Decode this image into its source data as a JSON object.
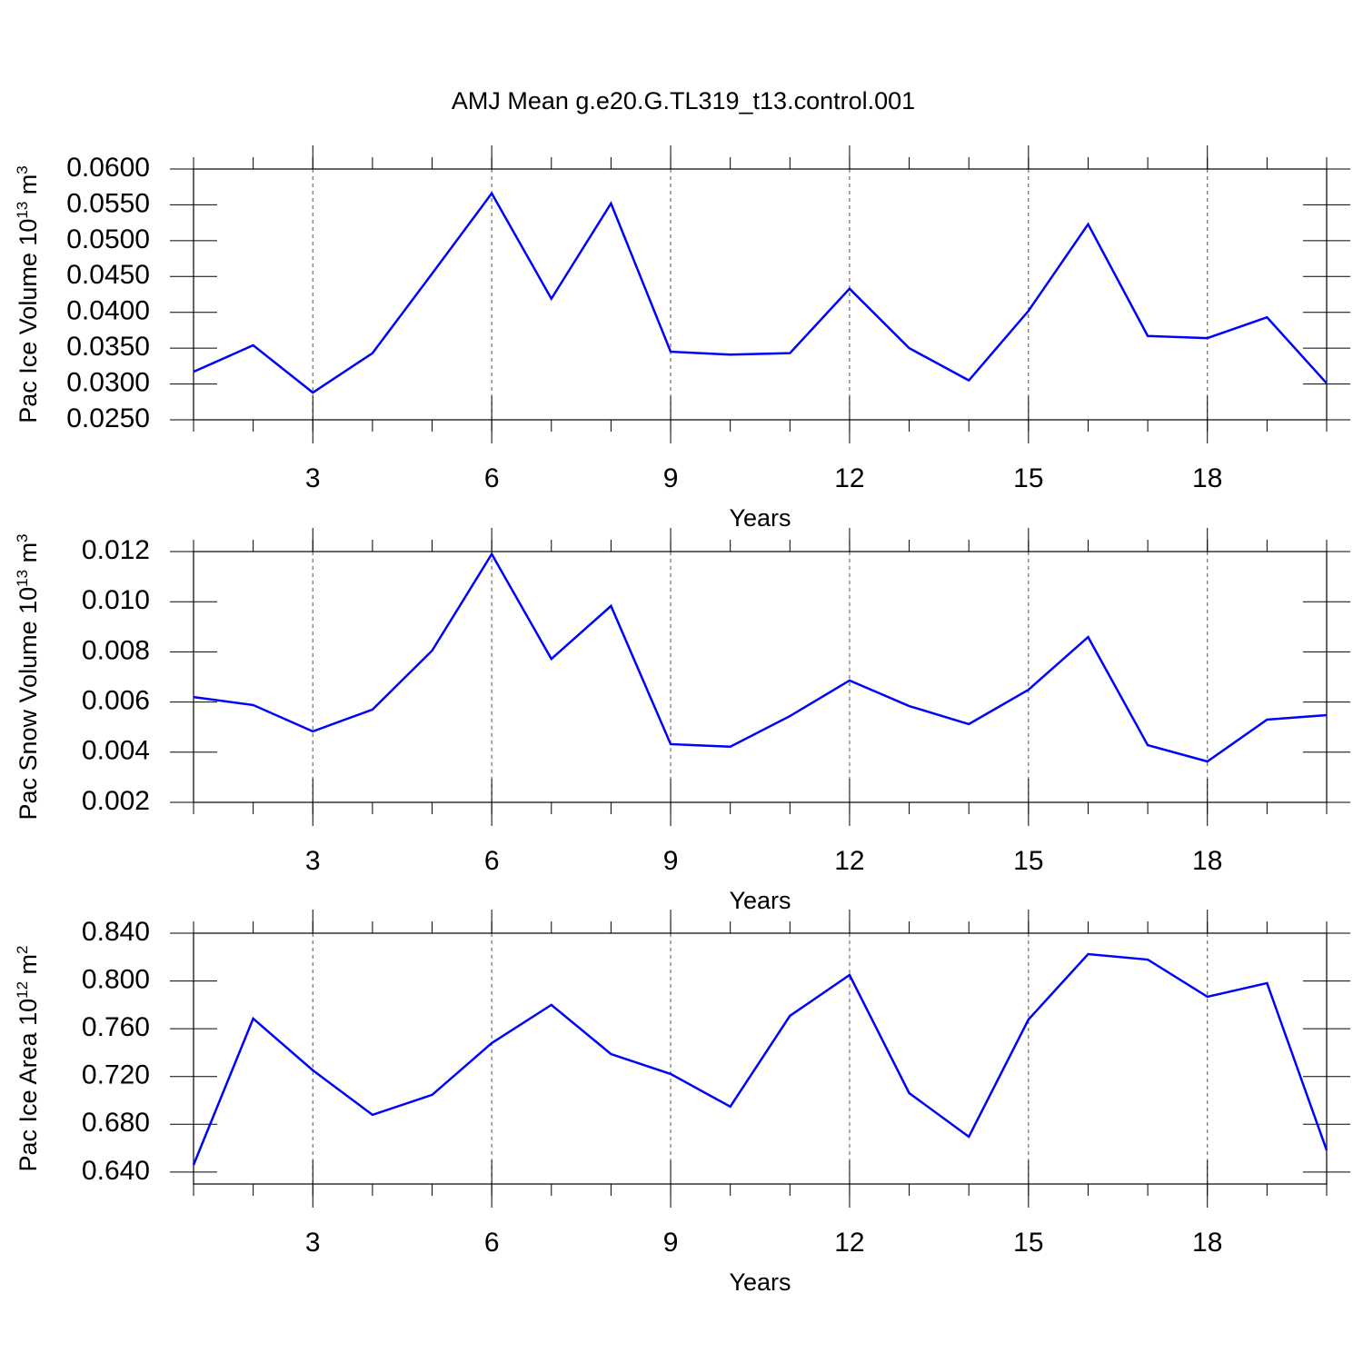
{
  "chart_data": [
    {
      "type": "line",
      "title": "AMJ Mean g.e20.G.TL319_t13.control.001",
      "ylabel": [
        "Pac Ice Volume 10",
        "13",
        " m",
        "3"
      ],
      "xlabel": "Years",
      "x": [
        1,
        2,
        3,
        4,
        5,
        6,
        7,
        8,
        9,
        10,
        11,
        12,
        13,
        14,
        15,
        16,
        17,
        18,
        19,
        20
      ],
      "series": [
        {
          "color": "#0000ff",
          "values": [
            0.0317,
            0.0354,
            0.0288,
            0.0343,
            0.0454,
            0.0566,
            0.0419,
            0.0552,
            0.0345,
            0.0341,
            0.0343,
            0.0433,
            0.035,
            0.0305,
            0.0402,
            0.0523,
            0.0367,
            0.0364,
            0.0393,
            0.0301
          ]
        }
      ],
      "xlim": [
        1,
        20
      ],
      "xticks": [
        3,
        6,
        9,
        12,
        15,
        18
      ],
      "grid": true,
      "ylim": [
        0.025,
        0.06
      ],
      "yticks": [
        {
          "value": 0.025,
          "label": "0.0250"
        },
        {
          "value": 0.03,
          "label": "0.0300"
        },
        {
          "value": 0.035,
          "label": "0.0350"
        },
        {
          "value": 0.04,
          "label": "0.0400"
        },
        {
          "value": 0.045,
          "label": "0.0450"
        },
        {
          "value": 0.05,
          "label": "0.0500"
        },
        {
          "value": 0.055,
          "label": "0.0550"
        },
        {
          "value": 0.06,
          "label": "0.0600"
        }
      ]
    },
    {
      "type": "line",
      "ylabel": [
        "Pac Snow Volume 10",
        "13",
        " m",
        "3"
      ],
      "xlabel": "Years",
      "x": [
        1,
        2,
        3,
        4,
        5,
        6,
        7,
        8,
        9,
        10,
        11,
        12,
        13,
        14,
        15,
        16,
        17,
        18,
        19,
        20
      ],
      "series": [
        {
          "color": "#0000ff",
          "values": [
            0.0062,
            0.00588,
            0.00483,
            0.0057,
            0.00805,
            0.0119,
            0.00772,
            0.00983,
            0.00432,
            0.00422,
            0.00544,
            0.00686,
            0.00584,
            0.00512,
            0.00649,
            0.00859,
            0.00428,
            0.00363,
            0.0053,
            0.00548
          ]
        }
      ],
      "xlim": [
        1,
        20
      ],
      "xticks": [
        3,
        6,
        9,
        12,
        15,
        18
      ],
      "grid": true,
      "ylim": [
        0.002,
        0.012
      ],
      "yticks": [
        {
          "value": 0.002,
          "label": "0.002"
        },
        {
          "value": 0.004,
          "label": "0.004"
        },
        {
          "value": 0.006,
          "label": "0.006"
        },
        {
          "value": 0.008,
          "label": "0.008"
        },
        {
          "value": 0.01,
          "label": "0.010"
        },
        {
          "value": 0.012,
          "label": "0.012"
        }
      ]
    },
    {
      "type": "line",
      "ylabel": [
        "Pac Ice Area 10",
        "12",
        " m",
        "2"
      ],
      "xlabel": "Years",
      "x": [
        1,
        2,
        3,
        4,
        5,
        6,
        7,
        8,
        9,
        10,
        11,
        12,
        13,
        14,
        15,
        16,
        17,
        18,
        19,
        20
      ],
      "series": [
        {
          "color": "#0000ff",
          "values": [
            0.646,
            0.7685,
            0.7252,
            0.6879,
            0.7046,
            0.748,
            0.78,
            0.7388,
            0.7221,
            0.6948,
            0.7708,
            0.805,
            0.7061,
            0.6696,
            0.7677,
            0.8225,
            0.8179,
            0.7868,
            0.7982,
            0.6583
          ]
        }
      ],
      "xlim": [
        1,
        20
      ],
      "xticks": [
        3,
        6,
        9,
        12,
        15,
        18
      ],
      "grid": true,
      "ylim": [
        0.63,
        0.84
      ],
      "yticks": [
        {
          "value": 0.64,
          "label": "0.640"
        },
        {
          "value": 0.68,
          "label": "0.680"
        },
        {
          "value": 0.72,
          "label": "0.720"
        },
        {
          "value": 0.76,
          "label": "0.760"
        },
        {
          "value": 0.8,
          "label": "0.800"
        },
        {
          "value": 0.84,
          "label": "0.840"
        }
      ]
    }
  ]
}
